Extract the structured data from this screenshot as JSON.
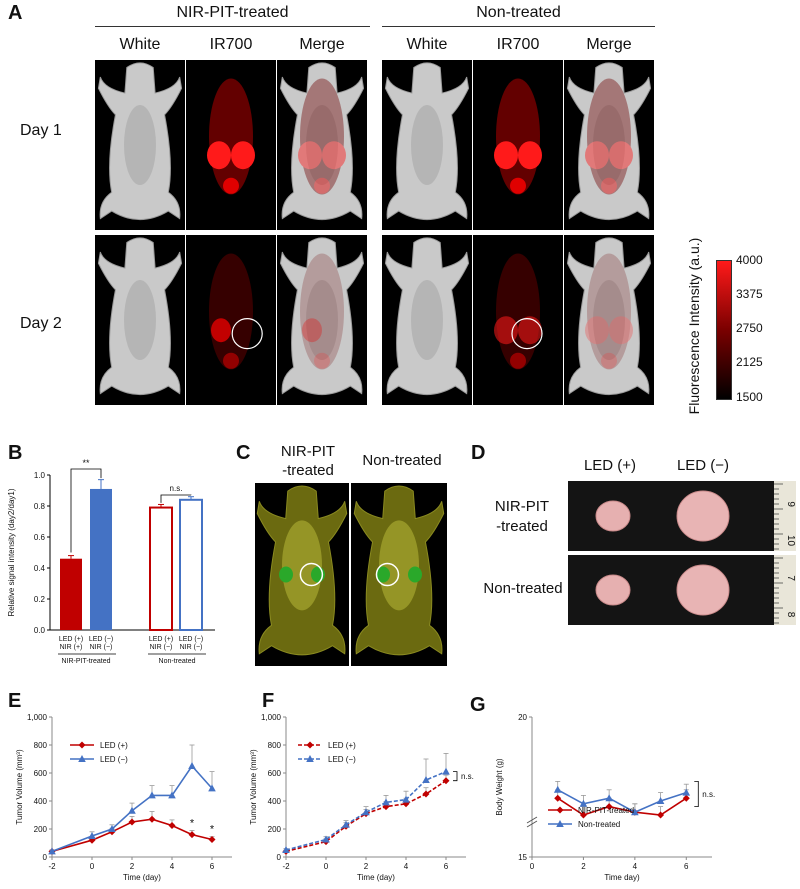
{
  "panels": {
    "A": "A",
    "B": "B",
    "C": "C",
    "D": "D",
    "E": "E",
    "F": "F",
    "G": "G"
  },
  "panelA": {
    "group1": "NIR-PIT-treated",
    "group2": "Non-treated",
    "columns": [
      "White",
      "IR700",
      "Merge",
      "White",
      "IR700",
      "Merge"
    ],
    "rows": [
      "Day 1",
      "Day 2"
    ],
    "colorbar": {
      "title": "Fluorescence Intensity (a.u.)",
      "ticks": [
        "4000",
        "3375",
        "2750",
        "2125",
        "1500"
      ],
      "low_color": "#000000",
      "high_color": "#ff1a1a"
    }
  },
  "panelC": {
    "labels": [
      "NIR-PIT\n-treated",
      "Non-treated"
    ]
  },
  "panelD": {
    "columns": [
      "LED (+)",
      "LED (−)"
    ],
    "rows": [
      "NIR-PIT\n-treated",
      "Non-treated"
    ],
    "ruler_marks_top": [
      "9",
      "10"
    ],
    "ruler_marks_bottom": [
      "7",
      "8"
    ]
  },
  "chart_data": [
    {
      "id": "B",
      "type": "bar",
      "ylabel": "Relative signal intensity (day2/day1)",
      "ylim": [
        0.0,
        1.0
      ],
      "yticks": [
        "0.0",
        "0.2",
        "0.4",
        "0.6",
        "0.8",
        "1.0"
      ],
      "categories": [
        {
          "line1": "LED (+)",
          "line2": "NIR (+)"
        },
        {
          "line1": "LED (−)",
          "line2": "NIR (−)"
        },
        {
          "line1": "LED (+)",
          "line2": "NIR (−)"
        },
        {
          "line1": "LED (−)",
          "line2": "NIR (−)"
        }
      ],
      "values": [
        0.46,
        0.91,
        0.79,
        0.84
      ],
      "errors": [
        0.02,
        0.06,
        0.02,
        0.02
      ],
      "styles": [
        "red-filled",
        "blue-filled",
        "red-open",
        "blue-open"
      ],
      "group_labels": [
        "NIR-PIT-treated",
        "Non-treated"
      ],
      "significance": [
        "**",
        "n.s."
      ],
      "colors": {
        "red": "#c00000",
        "blue": "#4472c4"
      }
    },
    {
      "id": "E",
      "type": "line",
      "xlabel": "Time (day)",
      "ylabel": "Tumor Volume (mm³)",
      "xlim": [
        -2,
        7
      ],
      "ylim": [
        0,
        1000
      ],
      "xticks": [
        "-2",
        "0",
        "2",
        "4",
        "6"
      ],
      "yticks": [
        "0",
        "200",
        "400",
        "600",
        "800",
        "1,000"
      ],
      "series": [
        {
          "name": "LED (+)",
          "color": "#c00000",
          "marker": "diamond",
          "dashed": false,
          "x": [
            -2,
            0,
            1,
            2,
            3,
            4,
            5,
            6
          ],
          "y": [
            40,
            120,
            180,
            250,
            270,
            225,
            160,
            125
          ],
          "err": [
            10,
            20,
            25,
            40,
            55,
            40,
            30,
            20
          ]
        },
        {
          "name": "LED (−)",
          "color": "#4472c4",
          "marker": "triangle",
          "dashed": false,
          "x": [
            -2,
            0,
            1,
            2,
            3,
            4,
            5,
            6
          ],
          "y": [
            40,
            150,
            200,
            330,
            440,
            440,
            650,
            490
          ],
          "err": [
            10,
            30,
            30,
            55,
            70,
            70,
            150,
            120
          ]
        }
      ],
      "annotations": [
        "*",
        "*"
      ]
    },
    {
      "id": "F",
      "type": "line",
      "xlabel": "Time (day)",
      "ylabel": "Tumor Volume (mm³)",
      "xlim": [
        -2,
        7
      ],
      "ylim": [
        0,
        1000
      ],
      "xticks": [
        "-2",
        "0",
        "2",
        "4",
        "6"
      ],
      "yticks": [
        "0",
        "200",
        "400",
        "600",
        "800",
        "1,000"
      ],
      "series": [
        {
          "name": "LED (+)",
          "color": "#c00000",
          "marker": "diamond",
          "dashed": true,
          "x": [
            -2,
            0,
            1,
            2,
            3,
            4,
            5,
            6
          ],
          "y": [
            40,
            110,
            220,
            310,
            360,
            380,
            450,
            545
          ],
          "err": [
            10,
            20,
            25,
            30,
            35,
            40,
            45,
            40
          ]
        },
        {
          "name": "LED (−)",
          "color": "#4472c4",
          "marker": "triangle",
          "dashed": true,
          "x": [
            -2,
            0,
            1,
            2,
            3,
            4,
            5,
            6
          ],
          "y": [
            50,
            125,
            230,
            320,
            390,
            410,
            550,
            610
          ],
          "err": [
            10,
            20,
            30,
            40,
            50,
            60,
            150,
            130
          ]
        }
      ],
      "annotation": "n.s."
    },
    {
      "id": "G",
      "type": "line",
      "xlabel": "Time  day)",
      "ylabel": "Body Weight (g)",
      "xlim": [
        0,
        7
      ],
      "ylim": [
        15,
        20
      ],
      "xticks": [
        "0",
        "2",
        "4",
        "6"
      ],
      "yticks": [
        "15",
        "20"
      ],
      "series": [
        {
          "name": "NIR-PIT-treated",
          "color": "#c00000",
          "marker": "diamond",
          "dashed": false,
          "x": [
            1,
            2,
            3,
            4,
            5,
            6
          ],
          "y": [
            17.1,
            16.5,
            16.8,
            16.6,
            16.5,
            17.1
          ],
          "err": [
            0.3,
            0.3,
            0.3,
            0.3,
            0.3,
            0.3
          ]
        },
        {
          "name": "Non-treated",
          "color": "#4472c4",
          "marker": "triangle",
          "dashed": false,
          "x": [
            1,
            2,
            3,
            4,
            5,
            6
          ],
          "y": [
            17.4,
            16.9,
            17.1,
            16.6,
            17.0,
            17.3
          ],
          "err": [
            0.3,
            0.3,
            0.3,
            0.3,
            0.3,
            0.3
          ]
        }
      ],
      "annotation": "n.s."
    }
  ]
}
